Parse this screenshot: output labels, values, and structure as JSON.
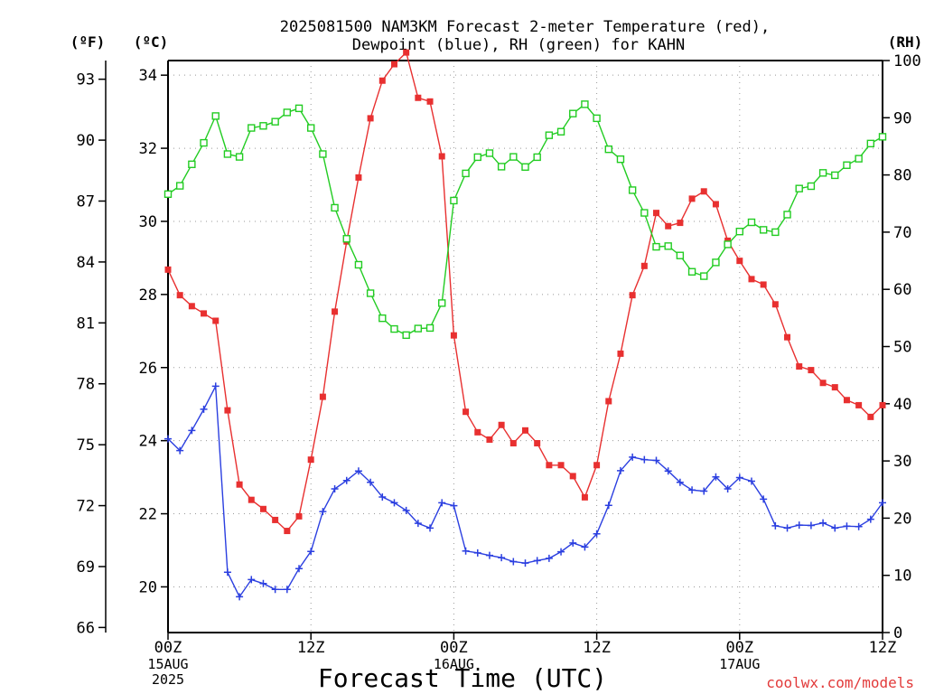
{
  "chart_data": {
    "type": "line",
    "title_line1": "2025081500 NAM3KM Forecast 2-meter Temperature (red),",
    "title_line2": "Dewpoint (blue), RH (green) for KAHN",
    "xlabel": "Forecast Time (UTC)",
    "credit": "coolwx.com/models",
    "unit_f": "(ºF)",
    "unit_c": "(ºC)",
    "unit_rh": "(RH)",
    "x_range_hours": [
      0,
      60
    ],
    "c_range": [
      18.75,
      34.4
    ],
    "f_range": [
      65.75,
      93.92
    ],
    "rh_range": [
      0,
      100
    ],
    "grid": true,
    "x_ticks": [
      {
        "hour": 0,
        "label": "00Z",
        "date": "15AUG",
        "year": "2025"
      },
      {
        "hour": 12,
        "label": "12Z",
        "date": "",
        "year": ""
      },
      {
        "hour": 24,
        "label": "00Z",
        "date": "16AUG",
        "year": ""
      },
      {
        "hour": 36,
        "label": "12Z",
        "date": "",
        "year": ""
      },
      {
        "hour": 48,
        "label": "00Z",
        "date": "17AUG",
        "year": ""
      },
      {
        "hour": 60,
        "label": "12Z",
        "date": "",
        "year": ""
      }
    ],
    "c_ticks": [
      "20",
      "22",
      "24",
      "26",
      "28",
      "30",
      "32",
      "34"
    ],
    "f_ticks": [
      "66",
      "69",
      "72",
      "75",
      "78",
      "81",
      "84",
      "87",
      "90",
      "93"
    ],
    "rh_ticks": [
      "0",
      "10",
      "20",
      "30",
      "40",
      "50",
      "60",
      "70",
      "80",
      "90",
      "100"
    ],
    "series": [
      {
        "name": "Temperature",
        "unit": "C",
        "color": "#e83030",
        "marker": "filled-square",
        "values": [
          28.68,
          27.98,
          27.68,
          27.48,
          27.28,
          24.83,
          22.8,
          22.38,
          22.13,
          21.83,
          21.53,
          21.93,
          23.48,
          25.2,
          27.53,
          29.45,
          31.2,
          32.82,
          33.85,
          34.3,
          34.62,
          33.38,
          33.28,
          31.78,
          26.88,
          24.79,
          24.23,
          24.03,
          24.43,
          23.93,
          24.28,
          23.93,
          23.33,
          23.33,
          23.03,
          22.45,
          23.33,
          25.08,
          26.38,
          27.98,
          28.78,
          30.23,
          29.87,
          29.96,
          30.62,
          30.82,
          30.47,
          29.47,
          28.92,
          28.42,
          28.27,
          27.73,
          26.83,
          26.03,
          25.93,
          25.58,
          25.46,
          25.11,
          24.97,
          24.65,
          24.97
        ]
      },
      {
        "name": "Dewpoint",
        "unit": "C",
        "color": "#2b3fe0",
        "marker": "plus",
        "values": [
          24.05,
          23.73,
          24.28,
          24.86,
          25.49,
          20.4,
          19.73,
          20.2,
          20.09,
          19.93,
          19.93,
          20.5,
          20.97,
          22.06,
          22.68,
          22.91,
          23.17,
          22.86,
          22.46,
          22.3,
          22.09,
          21.74,
          21.61,
          22.3,
          22.22,
          20.98,
          20.93,
          20.86,
          20.8,
          20.69,
          20.65,
          20.72,
          20.78,
          20.96,
          21.2,
          21.09,
          21.45,
          22.23,
          23.18,
          23.55,
          23.48,
          23.46,
          23.17,
          22.86,
          22.65,
          22.62,
          23.01,
          22.68,
          22.99,
          22.89,
          22.4,
          21.67,
          21.61,
          21.69,
          21.68,
          21.75,
          21.61,
          21.66,
          21.65,
          21.85,
          22.3
        ]
      },
      {
        "name": "RH",
        "unit": "%",
        "color": "#22cc22",
        "marker": "open-square",
        "values": [
          76.65,
          78.1,
          81.86,
          85.61,
          90.3,
          83.65,
          83.16,
          88.22,
          88.58,
          89.31,
          90.93,
          91.65,
          88.22,
          83.65,
          74.26,
          68.84,
          64.3,
          59.32,
          54.95,
          53.07,
          52.0,
          53.15,
          53.25,
          57.6,
          75.52,
          80.27,
          83.11,
          83.81,
          81.45,
          83.16,
          81.39,
          83.11,
          86.94,
          87.56,
          90.73,
          92.36,
          89.91,
          84.49,
          82.75,
          77.34,
          73.37,
          67.44,
          67.56,
          65.92,
          63.07,
          62.31,
          64.71,
          67.86,
          70.11,
          71.72,
          70.4,
          70.0,
          73.07,
          77.62,
          78.04,
          80.36,
          79.95,
          81.71,
          82.84,
          85.49,
          86.67
        ]
      }
    ]
  }
}
